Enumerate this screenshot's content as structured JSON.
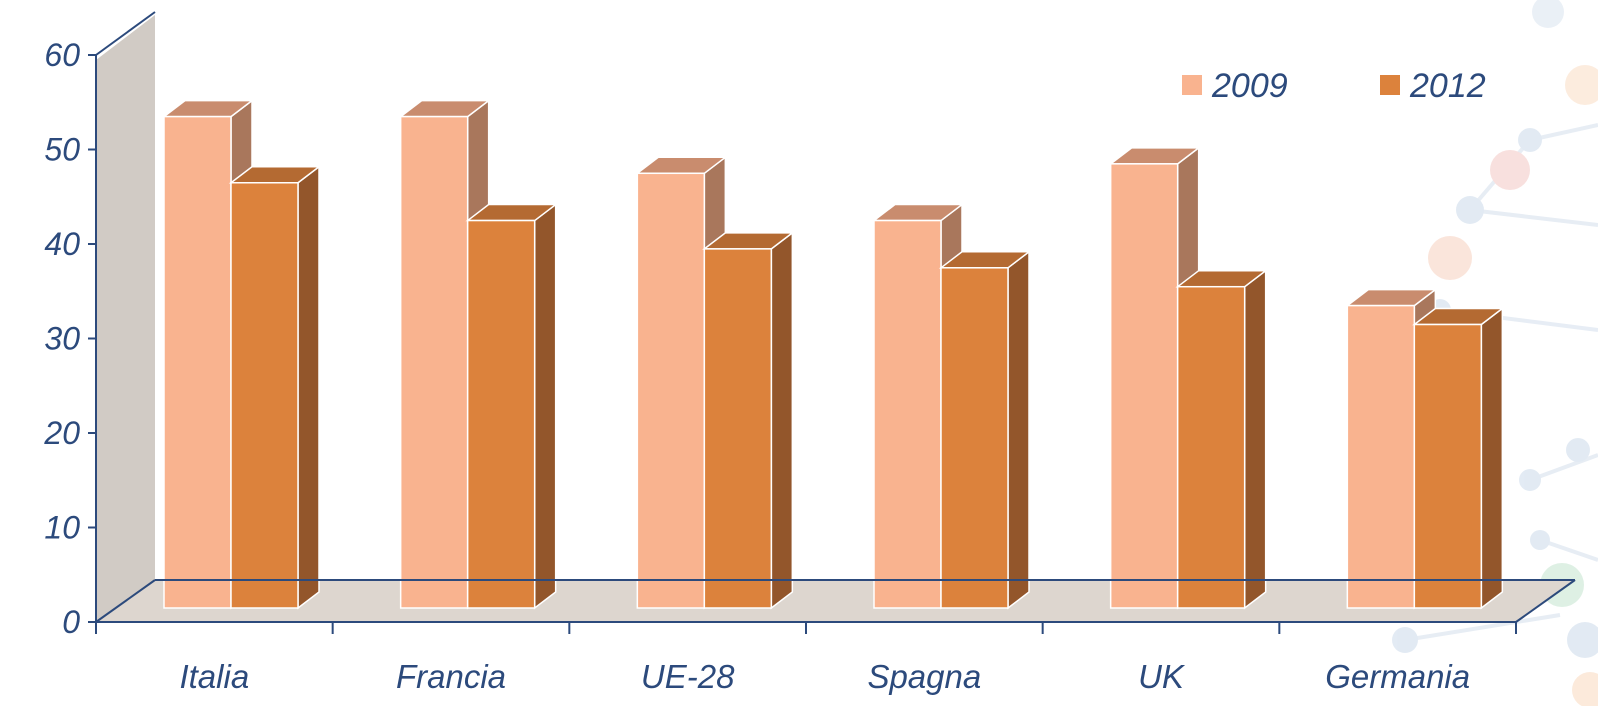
{
  "chart_data": {
    "type": "bar",
    "style": "3d-clustered",
    "categories": [
      "Italia",
      "Francia",
      "UE-28",
      "Spagna",
      "UK",
      "Germania"
    ],
    "series": [
      {
        "name": "2009",
        "values": [
          52,
          52,
          46,
          41,
          47,
          32
        ],
        "color": "#f9b38f"
      },
      {
        "name": "2012",
        "values": [
          45,
          41,
          38,
          36,
          34,
          30
        ],
        "color": "#dc823c"
      }
    ],
    "ylim": [
      0,
      60
    ],
    "yticks": [
      "0",
      "10",
      "20",
      "30",
      "40",
      "50",
      "60"
    ],
    "legend_position": "top-right",
    "grid": false,
    "colors": {
      "axis": "#2c4a7c",
      "back_wall": "#d1cbc5",
      "floor": "#ddd6cf"
    }
  }
}
